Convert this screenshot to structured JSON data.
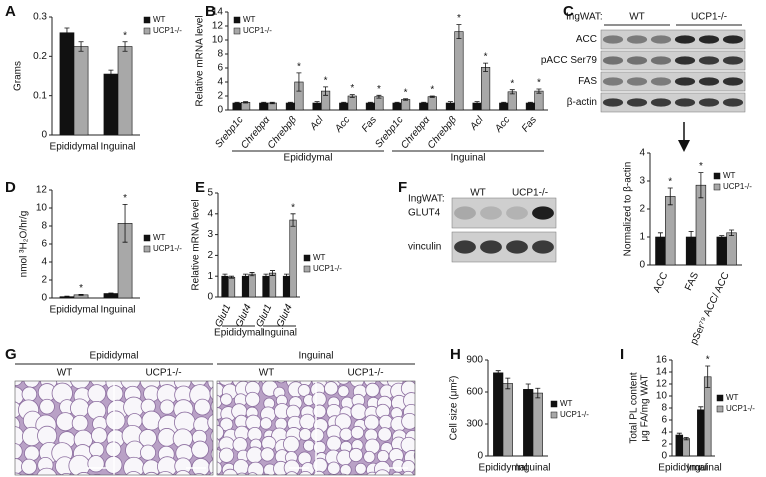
{
  "chart_data": [
    {
      "type": "bar",
      "panel": "A",
      "ylabel": "Grams",
      "categories": [
        "Epididymal",
        "Inguinal"
      ],
      "ylim": [
        0,
        0.3
      ],
      "yticks": [
        0,
        0.1,
        0.2,
        0.3
      ],
      "legend": "right",
      "significance_marker": "*",
      "series": [
        {
          "name": "WT",
          "color": "#111111",
          "values": [
            0.26,
            0.155
          ],
          "errors": [
            0.012,
            0.01
          ],
          "significant": [
            false,
            false
          ]
        },
        {
          "name": "UCP1-/-",
          "color": "#a8a8a8",
          "values": [
            0.225,
            0.225
          ],
          "errors": [
            0.012,
            0.012
          ],
          "significant": [
            false,
            true
          ]
        }
      ]
    },
    {
      "type": "bar",
      "panel": "B",
      "ylabel": "Relative mRNA level",
      "categories": [
        "Srebp1c",
        "Chrebpα",
        "Chrebpβ",
        "Acl",
        "Acc",
        "Fas",
        "Srebp1c",
        "Chrebpα",
        "Chrebpβ",
        "Acl",
        "Acc",
        "Fas"
      ],
      "group_labels": [
        "Epididymal",
        "Inguinal"
      ],
      "ylim": [
        0,
        14
      ],
      "yticks": [
        0,
        2,
        4,
        6,
        8,
        10,
        12,
        14
      ],
      "legend": "top-left",
      "significance_marker": "*",
      "series": [
        {
          "name": "WT",
          "color": "#111111",
          "values": [
            1.0,
            1.0,
            1.0,
            1.0,
            1.0,
            1.0,
            1.0,
            1.0,
            1.0,
            1.0,
            1.0,
            1.0
          ],
          "errors": [
            0.1,
            0.1,
            0.1,
            0.2,
            0.1,
            0.1,
            0.1,
            0.1,
            0.2,
            0.2,
            0.1,
            0.1
          ],
          "significant": [
            false,
            false,
            false,
            false,
            false,
            false,
            false,
            false,
            false,
            false,
            false,
            false
          ]
        },
        {
          "name": "UCP1-/-",
          "color": "#a8a8a8",
          "values": [
            1.1,
            1.0,
            4.0,
            2.7,
            2.0,
            1.9,
            1.5,
            1.9,
            11.2,
            6.1,
            2.6,
            2.7
          ],
          "errors": [
            0.1,
            0.1,
            1.3,
            0.6,
            0.2,
            0.2,
            0.1,
            0.1,
            1.0,
            0.6,
            0.3,
            0.3
          ],
          "significant": [
            false,
            false,
            true,
            true,
            true,
            true,
            true,
            true,
            true,
            true,
            true,
            true
          ]
        }
      ]
    },
    {
      "type": "bar",
      "ylabel": "Normalized to β-actin",
      "categories": [
        "ACC",
        "FAS",
        "pSer⁷⁹ ACC/ ACC"
      ],
      "ylim": [
        0,
        4
      ],
      "yticks": [
        0,
        1,
        2,
        3,
        4
      ],
      "legend": "top-right",
      "significance_marker": "*",
      "series": [
        {
          "name": "WT",
          "color": "#111111",
          "values": [
            1.0,
            1.0,
            1.0
          ],
          "errors": [
            0.15,
            0.2,
            0.05
          ],
          "significant": [
            false,
            false,
            false
          ]
        },
        {
          "name": "UCP1-/-",
          "color": "#a8a8a8",
          "values": [
            2.45,
            2.85,
            1.15
          ],
          "errors": [
            0.3,
            0.45,
            0.1
          ],
          "significant": [
            true,
            true,
            false
          ]
        }
      ]
    },
    {
      "type": "bar",
      "panel": "D",
      "ylabel": "nmol ³H₂O/hr/g",
      "categories": [
        "Epididymal",
        "Inguinal"
      ],
      "ylim": [
        0,
        12
      ],
      "yticks": [
        0,
        2,
        4,
        6,
        8,
        10,
        12
      ],
      "legend": "right",
      "significance_marker": "*",
      "series": [
        {
          "name": "WT",
          "color": "#111111",
          "values": [
            0.15,
            0.5
          ],
          "errors": [
            0.05,
            0.05
          ],
          "significant": [
            false,
            false
          ]
        },
        {
          "name": "UCP1-/-",
          "color": "#a8a8a8",
          "values": [
            0.35,
            8.3
          ],
          "errors": [
            0.05,
            2.1
          ],
          "significant": [
            true,
            true
          ]
        }
      ]
    },
    {
      "type": "bar",
      "panel": "E",
      "ylabel": "Relative mRNA level",
      "categories": [
        "Glut1",
        "Glut4",
        "Glut1",
        "Glut4"
      ],
      "group_labels": [
        "Epididymal",
        "Inguinal"
      ],
      "ylim": [
        0,
        5
      ],
      "yticks": [
        0,
        1,
        2,
        3,
        4,
        5
      ],
      "legend": "right",
      "significance_marker": "*",
      "series": [
        {
          "name": "WT",
          "color": "#111111",
          "values": [
            1.0,
            1.0,
            1.0,
            1.0
          ],
          "errors": [
            0.1,
            0.1,
            0.1,
            0.1
          ],
          "significant": [
            false,
            false,
            false,
            false
          ]
        },
        {
          "name": "UCP1-/-",
          "color": "#a8a8a8",
          "values": [
            0.95,
            1.1,
            1.15,
            3.7
          ],
          "errors": [
            0.05,
            0.08,
            0.12,
            0.3
          ],
          "significant": [
            false,
            false,
            false,
            true
          ]
        }
      ]
    },
    {
      "type": "bar",
      "panel": "H",
      "ylabel": "Cell size (μm²)",
      "categories": [
        "Epididymal",
        "Inguinal"
      ],
      "ylim": [
        0,
        900
      ],
      "yticks": [
        0,
        300,
        600,
        900
      ],
      "legend": "right",
      "significance_marker": "*",
      "series": [
        {
          "name": "WT",
          "color": "#111111",
          "values": [
            780,
            625
          ],
          "errors": [
            20,
            50
          ],
          "significant": [
            false,
            false
          ]
        },
        {
          "name": "UCP1-/-",
          "color": "#a8a8a8",
          "values": [
            680,
            590
          ],
          "errors": [
            50,
            45
          ],
          "significant": [
            false,
            false
          ]
        }
      ]
    },
    {
      "type": "bar",
      "panel": "I",
      "ylabel": [
        "Total PL content",
        "μg FA/mg WAT"
      ],
      "categories": [
        "Epididymal",
        "Inguinal"
      ],
      "ylim": [
        0,
        16
      ],
      "yticks": [
        0,
        2,
        4,
        6,
        8,
        10,
        12,
        14,
        16
      ],
      "legend": "right",
      "significance_marker": "*",
      "series": [
        {
          "name": "WT",
          "color": "#111111",
          "values": [
            3.5,
            7.7
          ],
          "errors": [
            0.3,
            0.5
          ],
          "significant": [
            false,
            false
          ]
        },
        {
          "name": "UCP1-/-",
          "color": "#a8a8a8",
          "values": [
            2.9,
            13.2
          ],
          "errors": [
            0.2,
            1.8
          ],
          "significant": [
            false,
            true
          ]
        }
      ]
    }
  ],
  "blots": [
    {
      "panel": "C",
      "tissue": "IngWAT:",
      "groups": [
        "WT",
        "UCP1-/-"
      ],
      "rows": [
        "ACC",
        "pACC Ser79",
        "FAS",
        "β-actin"
      ]
    },
    {
      "panel": "F",
      "tissue": "IngWAT:",
      "groups": [
        "WT",
        "UCP1-/-"
      ],
      "rows": [
        "GLUT4",
        "vinculin"
      ]
    }
  ],
  "histology": {
    "panel": "G",
    "groups": [
      {
        "title": "Epididymal",
        "labels": [
          "WT",
          "UCP1-/-"
        ]
      },
      {
        "title": "Inguinal",
        "labels": [
          "WT",
          "UCP1-/-"
        ]
      }
    ]
  }
}
